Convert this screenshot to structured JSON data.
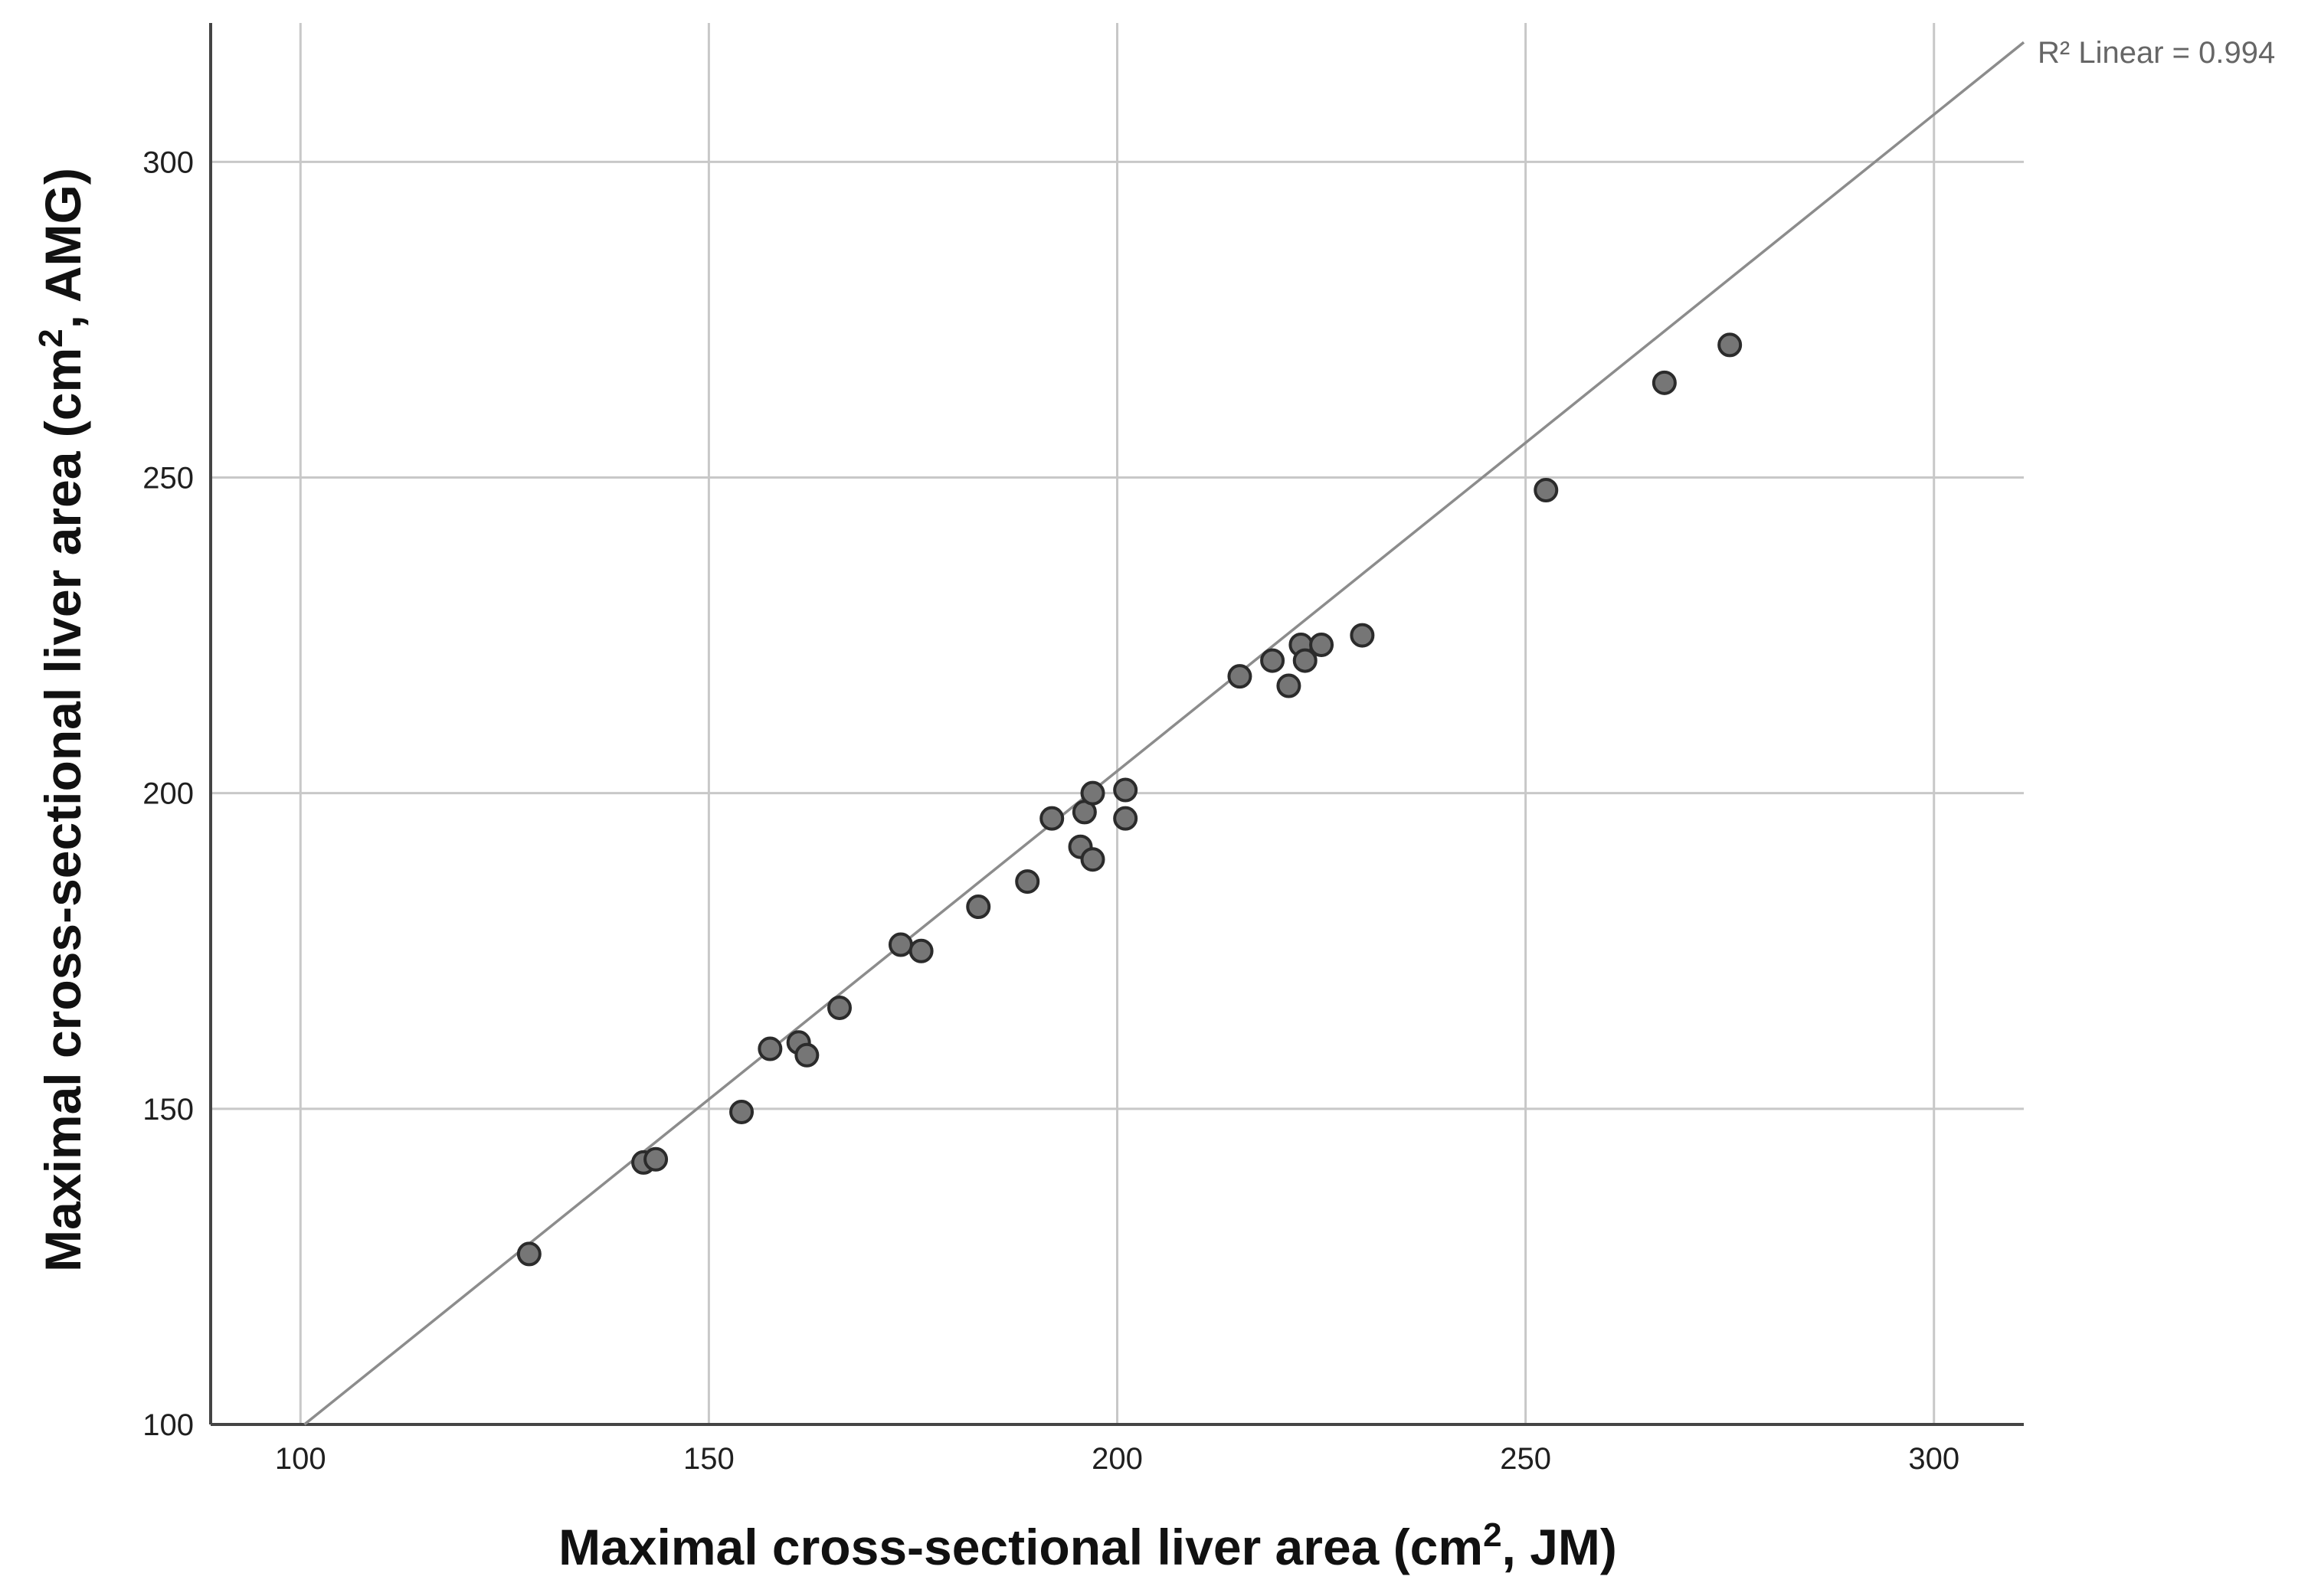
{
  "chart_data": {
    "type": "scatter",
    "title": "",
    "xlabel": {
      "prefix": "Maximal cross-sectional liver area  (cm",
      "sup": "2",
      "suffix": ", JM)"
    },
    "ylabel": {
      "prefix": "Maximal cross-sectional liver area  (cm",
      "sup": "2",
      "suffix": ", AMG)"
    },
    "xlim": [
      89,
      311
    ],
    "ylim": [
      100,
      322
    ],
    "x_ticks": [
      100,
      150,
      200,
      250,
      300
    ],
    "y_ticks": [
      100,
      150,
      200,
      250,
      300
    ],
    "grid": true,
    "annotation": "R² Linear = 0.994",
    "colors": {
      "marker_fill": "#767676",
      "marker_edge": "#2b2b2b",
      "fit_line": "#8c8c8c",
      "grid": "#c8c8c8"
    },
    "fit_line": {
      "slope": 1.04,
      "intercept": -4.5
    },
    "points": [
      {
        "x": 128,
        "y": 127
      },
      {
        "x": 142,
        "y": 141.5
      },
      {
        "x": 143.5,
        "y": 142
      },
      {
        "x": 154,
        "y": 149.5
      },
      {
        "x": 157.5,
        "y": 159.5
      },
      {
        "x": 161,
        "y": 160.5
      },
      {
        "x": 162,
        "y": 158.5
      },
      {
        "x": 166,
        "y": 166
      },
      {
        "x": 173.5,
        "y": 176
      },
      {
        "x": 176,
        "y": 175
      },
      {
        "x": 183,
        "y": 182
      },
      {
        "x": 189,
        "y": 186
      },
      {
        "x": 192,
        "y": 196
      },
      {
        "x": 195.5,
        "y": 191.5
      },
      {
        "x": 196,
        "y": 197
      },
      {
        "x": 197,
        "y": 189.5
      },
      {
        "x": 197,
        "y": 200
      },
      {
        "x": 201,
        "y": 196
      },
      {
        "x": 201,
        "y": 200.5
      },
      {
        "x": 215,
        "y": 218.5
      },
      {
        "x": 219,
        "y": 221
      },
      {
        "x": 221,
        "y": 217
      },
      {
        "x": 222.5,
        "y": 223.5
      },
      {
        "x": 223,
        "y": 221
      },
      {
        "x": 225,
        "y": 223.5
      },
      {
        "x": 230,
        "y": 225
      },
      {
        "x": 252.5,
        "y": 248
      },
      {
        "x": 267,
        "y": 265
      },
      {
        "x": 275,
        "y": 271
      }
    ]
  }
}
